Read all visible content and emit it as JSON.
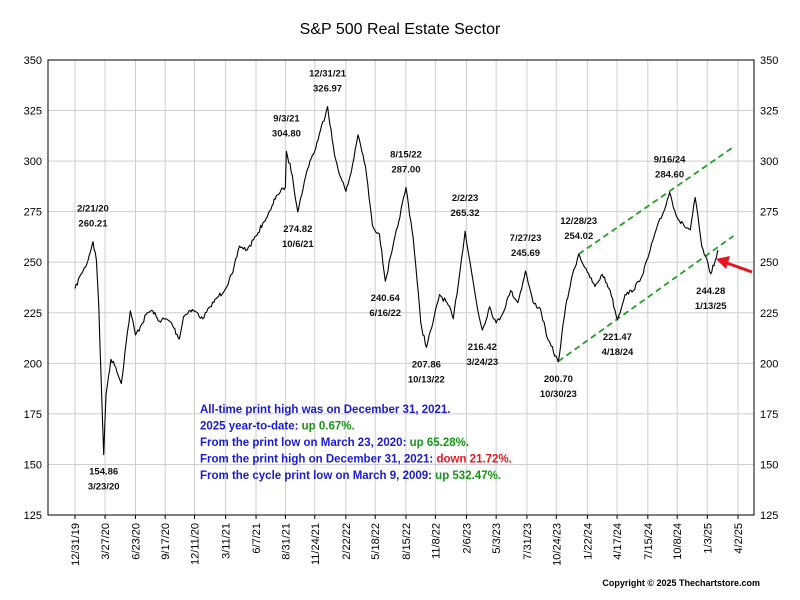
{
  "chart_data": {
    "type": "line",
    "title": "S&P 500 Real Estate Sector",
    "xlabel": "",
    "ylabel": "",
    "ylim": [
      125,
      350
    ],
    "y_ticks": [
      "125",
      "150",
      "175",
      "200",
      "225",
      "250",
      "275",
      "300",
      "325",
      "350"
    ],
    "x_ticks": [
      "12/31/19",
      "3/27/20",
      "6/23/20",
      "9/17/20",
      "12/11/20",
      "3/11/21",
      "6/7/21",
      "8/31/21",
      "11/24/21",
      "2/22/22",
      "5/18/22",
      "8/15/22",
      "11/8/22",
      "2/6/23",
      "5/3/23",
      "7/31/23",
      "10/24/23",
      "1/22/24",
      "4/17/24",
      "7/15/24",
      "10/8/24",
      "1/3/25",
      "4/2/25"
    ],
    "grid": true,
    "series": [
      {
        "points": [
          [
            "12/31/19",
            237
          ],
          [
            "1/17/20",
            244
          ],
          [
            "2/3/20",
            249
          ],
          [
            "2/21/20",
            260.21
          ],
          [
            "3/2/20",
            251
          ],
          [
            "3/9/20",
            228
          ],
          [
            "3/16/20",
            190
          ],
          [
            "3/23/20",
            154.86
          ],
          [
            "3/30/20",
            185
          ],
          [
            "4/13/20",
            202
          ],
          [
            "4/27/20",
            198
          ],
          [
            "5/13/20",
            190
          ],
          [
            "5/27/20",
            210
          ],
          [
            "6/8/20",
            226
          ],
          [
            "6/23/20",
            214
          ],
          [
            "7/10/20",
            219
          ],
          [
            "7/27/20",
            225
          ],
          [
            "8/12/20",
            226
          ],
          [
            "8/28/20",
            221
          ],
          [
            "9/17/20",
            222
          ],
          [
            "10/5/20",
            220
          ],
          [
            "10/28/20",
            212
          ],
          [
            "11/9/20",
            223
          ],
          [
            "11/25/20",
            226
          ],
          [
            "12/11/20",
            226
          ],
          [
            "1/4/21",
            222
          ],
          [
            "1/25/21",
            228
          ],
          [
            "2/12/21",
            232
          ],
          [
            "3/11/21",
            237
          ],
          [
            "4/1/21",
            245
          ],
          [
            "4/20/21",
            258
          ],
          [
            "5/12/21",
            256
          ],
          [
            "6/7/21",
            263
          ],
          [
            "6/30/21",
            270
          ],
          [
            "7/20/21",
            276
          ],
          [
            "8/5/21",
            283
          ],
          [
            "8/31/21",
            287
          ],
          [
            "9/3/21",
            304.8
          ],
          [
            "9/20/21",
            293
          ],
          [
            "10/6/21",
            274.82
          ],
          [
            "10/25/21",
            290
          ],
          [
            "11/10/21",
            300
          ],
          [
            "11/24/21",
            305
          ],
          [
            "12/10/21",
            315
          ],
          [
            "12/31/21",
            326.97
          ],
          [
            "1/20/22",
            303
          ],
          [
            "2/7/22",
            292
          ],
          [
            "2/22/22",
            285
          ],
          [
            "3/10/22",
            295
          ],
          [
            "3/29/22",
            313
          ],
          [
            "4/20/22",
            297
          ],
          [
            "5/10/22",
            268
          ],
          [
            "5/30/22",
            264
          ],
          [
            "6/16/22",
            240.64
          ],
          [
            "7/5/22",
            255
          ],
          [
            "7/25/22",
            270
          ],
          [
            "8/15/22",
            287.0
          ],
          [
            "9/5/22",
            262
          ],
          [
            "9/27/22",
            220
          ],
          [
            "10/13/22",
            207.86
          ],
          [
            "11/1/22",
            220
          ],
          [
            "11/20/22",
            234
          ],
          [
            "12/12/22",
            230
          ],
          [
            "12/30/22",
            222
          ],
          [
            "1/20/23",
            248
          ],
          [
            "2/2/23",
            265.32
          ],
          [
            "2/20/23",
            246
          ],
          [
            "3/10/23",
            227
          ],
          [
            "3/24/23",
            216.42
          ],
          [
            "4/14/23",
            228
          ],
          [
            "5/3/23",
            220
          ],
          [
            "5/23/23",
            225
          ],
          [
            "6/14/23",
            236
          ],
          [
            "7/5/23",
            230
          ],
          [
            "7/27/23",
            245.69
          ],
          [
            "8/18/23",
            230
          ],
          [
            "9/8/23",
            227
          ],
          [
            "9/29/23",
            212
          ],
          [
            "10/30/23",
            200.7
          ],
          [
            "11/20/23",
            228
          ],
          [
            "12/10/23",
            244
          ],
          [
            "12/28/23",
            254.02
          ],
          [
            "1/22/24",
            245
          ],
          [
            "2/13/24",
            238
          ],
          [
            "3/5/24",
            244
          ],
          [
            "3/28/24",
            236
          ],
          [
            "4/18/24",
            221.47
          ],
          [
            "5/10/24",
            234
          ],
          [
            "6/3/24",
            236
          ],
          [
            "6/25/24",
            242
          ],
          [
            "7/15/24",
            252
          ],
          [
            "8/8/24",
            266
          ],
          [
            "8/30/24",
            275
          ],
          [
            "9/16/24",
            284.6
          ],
          [
            "10/8/24",
            272
          ],
          [
            "10/28/24",
            268
          ],
          [
            "11/15/24",
            266
          ],
          [
            "11/29/24",
            282
          ],
          [
            "12/18/24",
            258
          ],
          [
            "1/13/25",
            244.28
          ],
          [
            "1/29/25",
            252
          ],
          [
            "2/3/25",
            256
          ]
        ]
      }
    ],
    "annotations": [
      {
        "date": "2/21/20",
        "value": "260.21",
        "date_label": "2/21/20",
        "position": "above"
      },
      {
        "date": "3/23/20",
        "value": "154.86",
        "date_label": "3/23/20",
        "position": "below"
      },
      {
        "date": "9/3/21",
        "value": "304.80",
        "date_label": "9/3/21",
        "position": "above"
      },
      {
        "date": "10/6/21",
        "value": "274.82",
        "date_label": "10/6/21",
        "position": "below"
      },
      {
        "date": "12/31/21",
        "value": "326.97",
        "date_label": "12/31/21",
        "position": "above"
      },
      {
        "date": "6/16/22",
        "value": "240.64",
        "date_label": "6/16/22",
        "position": "below"
      },
      {
        "date": "8/15/22",
        "value": "287.00",
        "date_label": "8/15/22",
        "position": "above"
      },
      {
        "date": "10/13/22",
        "value": "207.86",
        "date_label": "10/13/22",
        "position": "below"
      },
      {
        "date": "2/2/23",
        "value": "265.32",
        "date_label": "2/2/23",
        "position": "above"
      },
      {
        "date": "3/24/23",
        "value": "216.42",
        "date_label": "3/24/23",
        "position": "below"
      },
      {
        "date": "7/27/23",
        "value": "245.69",
        "date_label": "7/27/23",
        "position": "above"
      },
      {
        "date": "10/30/23",
        "value": "200.70",
        "date_label": "10/30/23",
        "position": "below"
      },
      {
        "date": "12/28/23",
        "value": "254.02",
        "date_label": "12/28/23",
        "position": "above"
      },
      {
        "date": "4/18/24",
        "value": "221.47",
        "date_label": "4/18/24",
        "position": "below"
      },
      {
        "date": "9/16/24",
        "value": "284.60",
        "date_label": "9/16/24",
        "position": "above"
      },
      {
        "date": "1/13/25",
        "value": "244.28",
        "date_label": "1/13/25",
        "position": "below"
      }
    ],
    "trend_channel": {
      "color": "#22a022",
      "upper": [
        [
          "12/28/23",
          254
        ],
        [
          "3/20/25",
          307
        ]
      ],
      "lower": [
        [
          "10/30/23",
          201
        ],
        [
          "3/20/25",
          263
        ]
      ]
    },
    "line_color": "#000000",
    "arrow_color": "#e8141e",
    "info_box": [
      {
        "segments": [
          {
            "text": "All-time print high was on December 31, 2021.",
            "color": "#1a1ad2"
          }
        ]
      },
      {
        "segments": [
          {
            "text": "2025 year-to-date: ",
            "color": "#1a1ad2"
          },
          {
            "text": "up 0.67%.",
            "color": "#179417"
          }
        ]
      },
      {
        "segments": [
          {
            "text": "From the print low on March 23, 2020:  ",
            "color": "#1a1ad2"
          },
          {
            "text": "up 65.28%.",
            "color": "#179417"
          }
        ]
      },
      {
        "segments": [
          {
            "text": "From the print high on December 31, 2021:  ",
            "color": "#1a1ad2"
          },
          {
            "text": "down 21.72%.",
            "color": "#e8141e"
          }
        ]
      },
      {
        "segments": [
          {
            "text": "From the cycle print low on March 9, 2009:  ",
            "color": "#1a1ad2"
          },
          {
            "text": "up 532.47%.",
            "color": "#179417"
          }
        ]
      }
    ],
    "copyright": "Copyright © 2025 Thechartstore.com"
  }
}
